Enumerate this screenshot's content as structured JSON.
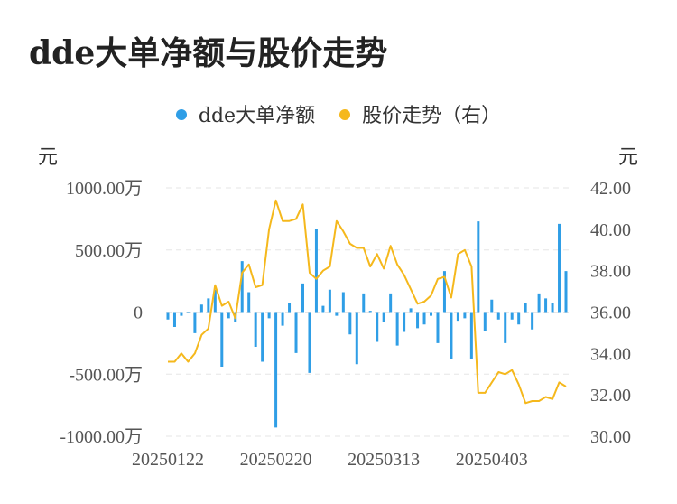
{
  "title": "dde大单净额与股价走势",
  "legend": [
    {
      "label": "dde大单净额",
      "color": "#2f9ee6"
    },
    {
      "label": "股价走势（右）",
      "color": "#f5b81c"
    }
  ],
  "units": {
    "left": "元",
    "right": "元"
  },
  "chart_data": {
    "type": "bar+line",
    "left_axis": {
      "ticks": [
        1000,
        500,
        0,
        -500,
        -1000
      ],
      "tick_labels": [
        "1000.00万",
        "500.00万",
        "0",
        "-500.00万",
        "-1000.00万"
      ],
      "range": [
        -1000,
        1000
      ]
    },
    "right_axis": {
      "ticks": [
        42,
        40,
        38,
        36,
        34,
        32,
        30
      ],
      "tick_labels": [
        "42.00",
        "40.00",
        "38.00",
        "36.00",
        "34.00",
        "32.00",
        "30.00"
      ],
      "range": [
        30,
        42
      ]
    },
    "x_labels": [
      {
        "index": 0,
        "label": "20250122"
      },
      {
        "index": 16,
        "label": "20250220"
      },
      {
        "index": 32,
        "label": "20250313"
      },
      {
        "index": 48,
        "label": "20250403"
      }
    ],
    "grid": "horizontal dashed",
    "legend_position": "top-center",
    "series": [
      {
        "name": "dde大单净额",
        "kind": "bar",
        "axis": "left",
        "color": "#2f9ee6",
        "values": [
          -60,
          -120,
          -30,
          -10,
          -170,
          60,
          110,
          180,
          -440,
          -50,
          -80,
          410,
          160,
          -280,
          -400,
          -50,
          -930,
          -110,
          70,
          -330,
          230,
          -490,
          670,
          50,
          180,
          -30,
          160,
          -180,
          -420,
          150,
          10,
          -240,
          -80,
          150,
          -270,
          -160,
          30,
          -130,
          -100,
          -30,
          -250,
          330,
          -380,
          -70,
          -50,
          -380,
          730,
          -150,
          100,
          -60,
          -250,
          -60,
          -100,
          70,
          -140,
          150,
          110,
          70,
          710,
          330
        ]
      },
      {
        "name": "股价走势（右）",
        "kind": "line",
        "axis": "right",
        "color": "#f5b81c",
        "values": [
          33.6,
          33.6,
          34.0,
          33.6,
          34.0,
          34.9,
          35.2,
          37.3,
          36.3,
          36.5,
          35.7,
          37.9,
          38.3,
          37.2,
          37.3,
          40.0,
          41.4,
          40.4,
          40.4,
          40.5,
          41.2,
          37.9,
          37.6,
          38.0,
          38.2,
          40.4,
          39.9,
          39.3,
          39.1,
          39.1,
          38.2,
          38.8,
          38.1,
          39.2,
          38.3,
          37.8,
          37.1,
          36.4,
          36.5,
          36.8,
          37.6,
          37.7,
          36.7,
          38.8,
          39.0,
          38.2,
          32.1,
          32.1,
          32.6,
          33.1,
          33.0,
          33.2,
          32.5,
          31.6,
          31.7,
          31.7,
          31.9,
          31.8,
          32.6,
          32.4
        ]
      }
    ]
  }
}
